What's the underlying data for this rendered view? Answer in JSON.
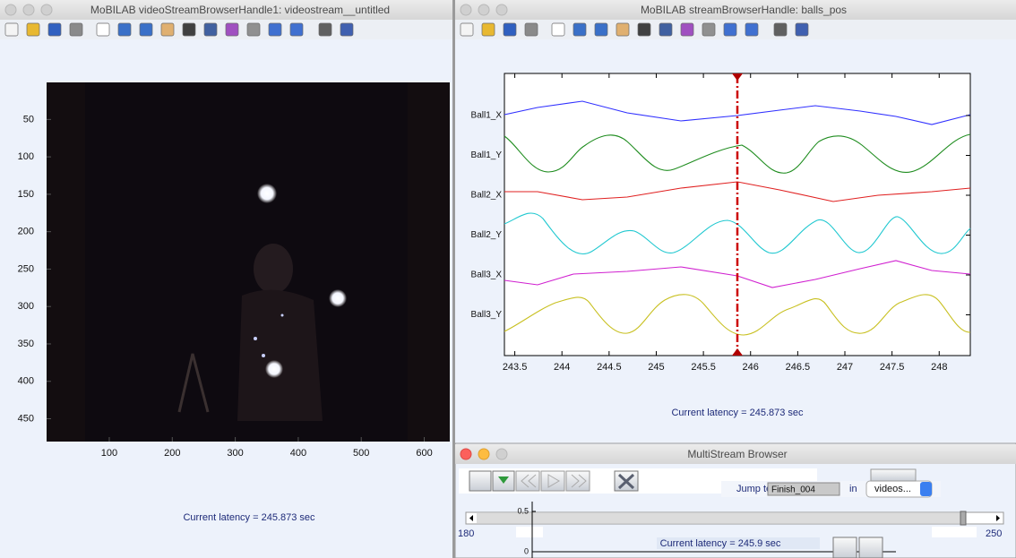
{
  "video_window": {
    "title": "MoBILAB videoStreamBrowserHandle1: videostream__untitled",
    "axes": {
      "xlim": [
        0.5,
        640.5
      ],
      "ylim": [
        0.5,
        480.5
      ],
      "y_reversed": true,
      "xticks": [
        100,
        200,
        300,
        400,
        500,
        600
      ],
      "yticks": [
        50,
        100,
        150,
        200,
        250,
        300,
        350,
        400,
        450
      ]
    },
    "latency": "Current latency = 245.873 sec"
  },
  "stream_window": {
    "title": "MoBILAB streamBrowserHandle: balls_pos",
    "channels": [
      "Ball1_X",
      "Ball1_Y",
      "Ball2_X",
      "Ball2_Y",
      "Ball3_X",
      "Ball3_Y"
    ],
    "axes": {
      "xlim": [
        243.39,
        248.33
      ],
      "xticks": [
        243.5,
        244,
        244.5,
        245,
        245.5,
        246,
        246.5,
        247,
        247.5,
        248
      ]
    },
    "latency": "Current latency = 245.873 sec"
  },
  "multistream_window": {
    "title": "MultiStream Browser",
    "jump_label": "Jump to",
    "jump_value": "Finish_004",
    "in_label": "in",
    "dropdown": "videos...",
    "slider_min": 180,
    "slider_max": 250,
    "mini_yticks": [
      0.5,
      0
    ],
    "latency": "Current latency = 245.9 sec"
  }
}
